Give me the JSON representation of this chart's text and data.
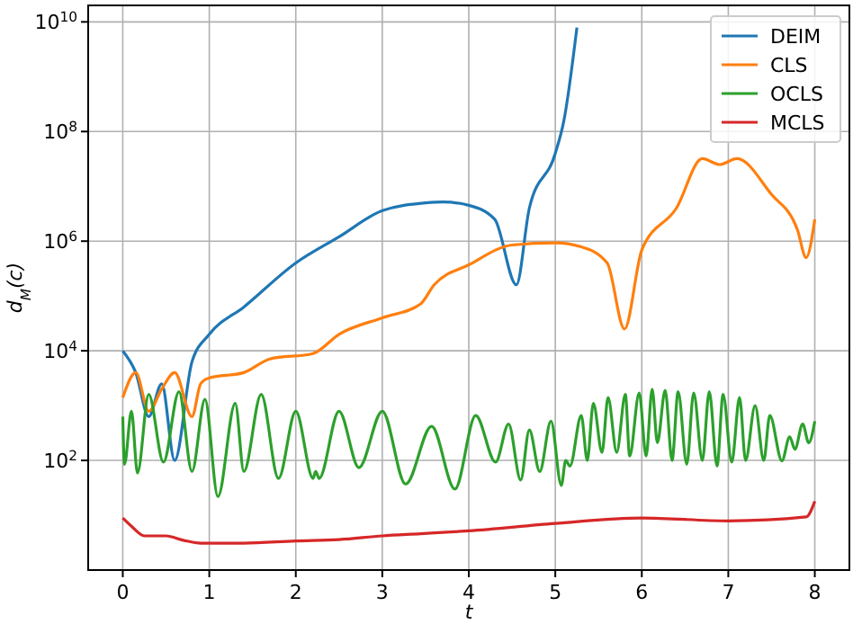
{
  "chart_data": {
    "type": "line",
    "xlabel": "t",
    "ylabel": "d$_{M}$(c)",
    "log": true,
    "grid": true,
    "legend": "top right",
    "xlim": [
      -0.4,
      8.4
    ],
    "xticks": [
      0,
      1,
      2,
      3,
      4,
      5,
      6,
      7,
      8
    ],
    "ylim": [
      1,
      20000000000.0
    ],
    "yticks": [
      {
        "value": 100,
        "label": "10$^{2}$"
      },
      {
        "value": 10000,
        "label": "10$^{4}$"
      },
      {
        "value": 1000000,
        "label": "10$^{6}$"
      },
      {
        "value": 100000000,
        "label": "10$^{8}$"
      },
      {
        "value": 10000000000,
        "label": "10$^{10}$"
      }
    ],
    "series": [
      {
        "name": "DEIM",
        "color": "#1f77b4",
        "x": [
          0,
          0.15,
          0.3,
          0.45,
          0.6,
          0.8,
          1,
          1.4,
          2,
          2.5,
          3,
          3.5,
          3.7,
          4,
          4.3,
          4.55,
          4.7,
          5,
          5.1,
          5.25
        ],
        "values": [
          10000,
          4000,
          630,
          2500,
          100,
          6300,
          20000,
          63000,
          400000,
          1200000,
          3600000,
          5000000,
          5200000,
          4500000,
          2500000,
          160000,
          4000000,
          40000000,
          160000000,
          7900000000
        ]
      },
      {
        "name": "CLS",
        "color": "#ff7f0e",
        "x": [
          0,
          0.15,
          0.3,
          0.45,
          0.6,
          0.8,
          0.9,
          1,
          1.4,
          1.7,
          2.2,
          2.5,
          3,
          3.44,
          3.6,
          4,
          4.5,
          5,
          5.3,
          5.6,
          5.8,
          6,
          6.4,
          6.7,
          6.9,
          7.1,
          7.5,
          7.8,
          7.9,
          8
        ],
        "values": [
          1400,
          4000,
          790,
          2000,
          4000,
          630,
          2500,
          3200,
          4000,
          7100,
          8900,
          20000,
          40000,
          71000,
          160000,
          370000,
          850000,
          930000,
          790000,
          400000,
          25000,
          690000,
          4000000,
          32000000,
          25000000,
          32000000,
          7100000,
          1600000,
          500000,
          2500000
        ]
      },
      {
        "name": "OCLS",
        "color": "#2ca02c",
        "x": [
          0,
          0.02,
          0.1,
          0.17,
          0.3,
          0.47,
          0.65,
          0.8,
          0.95,
          1.1,
          1.3,
          1.4,
          1.6,
          1.8,
          2.0,
          2.2,
          2.23,
          2.27,
          2.5,
          2.73,
          3.0,
          3.27,
          3.57,
          3.84,
          4.08,
          4.31,
          4.46,
          4.6,
          4.7,
          4.82,
          4.95,
          5.07,
          5.12,
          5.17,
          5.3,
          5.37,
          5.44,
          5.54,
          5.61,
          5.71,
          5.81,
          5.86,
          5.97,
          6.05,
          6.12,
          6.18,
          6.27,
          6.35,
          6.42,
          6.52,
          6.6,
          6.7,
          6.78,
          6.87,
          6.94,
          7.04,
          7.13,
          7.2,
          7.31,
          7.41,
          7.48,
          7.62,
          7.71,
          7.77,
          7.86,
          7.93,
          8.0
        ],
        "values": [
          630,
          85,
          790,
          59,
          1600,
          93,
          1800,
          63,
          1300,
          22,
          1100,
          63,
          1600,
          47,
          790,
          47,
          63,
          47,
          790,
          74,
          790,
          37,
          420,
          30,
          660,
          93,
          460,
          44,
          360,
          63,
          520,
          35,
          100,
          79,
          660,
          100,
          1100,
          140,
          1400,
          140,
          1600,
          120,
          1700,
          120,
          2000,
          210,
          1900,
          100,
          1800,
          85,
          1700,
          100,
          1800,
          79,
          1600,
          93,
          1400,
          100,
          1000,
          100,
          660,
          98,
          270,
          160,
          460,
          210,
          520
        ]
      },
      {
        "name": "MCLS",
        "color": "#d62728",
        "x": [
          0,
          0.1,
          0.25,
          0.5,
          0.7,
          0.9,
          1.4,
          2,
          2.5,
          3,
          3.44,
          4,
          5,
          6,
          7,
          7.9,
          8
        ],
        "values": [
          8.9,
          6.3,
          4.2,
          4.2,
          3.5,
          3.1,
          3.1,
          3.4,
          3.6,
          4.2,
          4.6,
          5.2,
          7.1,
          8.9,
          7.9,
          9.3,
          18
        ]
      }
    ]
  }
}
